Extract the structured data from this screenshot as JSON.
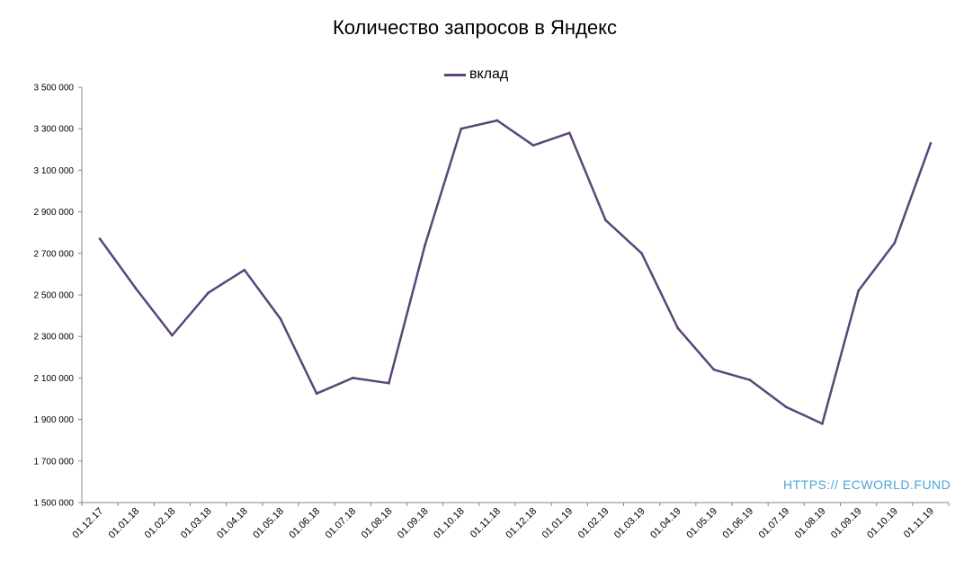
{
  "chart_data": {
    "type": "line",
    "title": "Количество запросов в Яндекс",
    "categories": [
      "01.12.17",
      "01.01.18",
      "01.02.18",
      "01.03.18",
      "01.04.18",
      "01.05.18",
      "01.06.18",
      "01.07.18",
      "01.08.18",
      "01.09.18",
      "01.10.18",
      "01.11.18",
      "01.12.18",
      "01.01.19",
      "01.02.19",
      "01.03.19",
      "01.04.19",
      "01.05.19",
      "01.06.19",
      "01.07.19",
      "01.08.19",
      "01.09.19",
      "01.10.19",
      "01.11.19"
    ],
    "series": [
      {
        "name": "вклад",
        "color": "#5b4578",
        "values": [
          2770000,
          2530000,
          2305000,
          2510000,
          2620000,
          2385000,
          2025000,
          2100000,
          2075000,
          2740000,
          3300000,
          3340000,
          3220000,
          3280000,
          2860000,
          2700000,
          2340000,
          2140000,
          2090000,
          1960000,
          1880000,
          2520000,
          2750000,
          3230000
        ]
      }
    ],
    "y_ticks": [
      "1 500 000",
      "1 700 000",
      "1 900 000",
      "2 100 000",
      "2 300 000",
      "2 500 000",
      "2 700 000",
      "2 900 000",
      "3 100 000",
      "3 300 000",
      "3 500 000"
    ],
    "ylim": [
      1500000,
      3500000
    ],
    "xlabel": "",
    "ylabel": "",
    "grid": false,
    "legend_position": "top-center"
  },
  "watermark": "HTTPS:// ECWORLD.FUND"
}
